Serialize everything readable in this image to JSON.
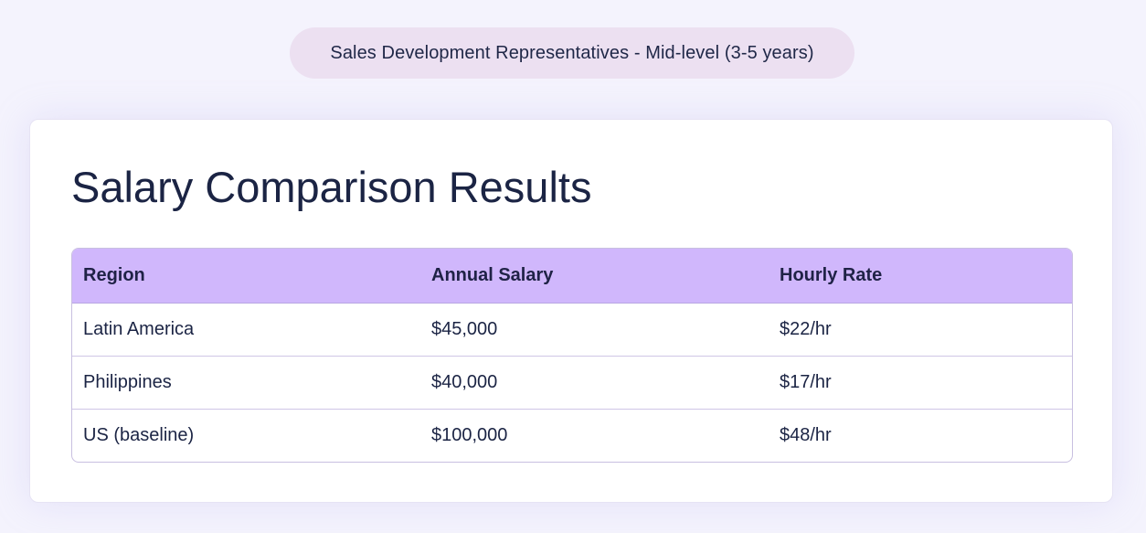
{
  "header": {
    "role_label": "Sales Development Representatives - Mid-level (3-5 years)"
  },
  "results": {
    "title": "Salary Comparison Results",
    "columns": [
      "Region",
      "Annual Salary",
      "Hourly Rate"
    ],
    "rows": [
      {
        "region": "Latin America",
        "annual_salary": "$45,000",
        "hourly_rate": "$22/hr"
      },
      {
        "region": "Philippines",
        "annual_salary": "$40,000",
        "hourly_rate": "$17/hr"
      },
      {
        "region": "US (baseline)",
        "annual_salary": "$100,000",
        "hourly_rate": "$48/hr"
      }
    ]
  },
  "colors": {
    "page_background": "#f4f3fd",
    "pill_background": "#ece0f1",
    "table_header": "#d0b7fc",
    "text_primary": "#1b2444"
  }
}
